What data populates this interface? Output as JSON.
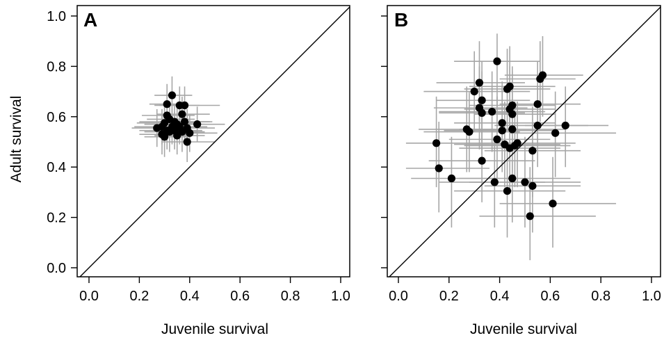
{
  "chart_data": [
    {
      "type": "scatter",
      "panel_label": "A",
      "xlabel": "Juvenile survival",
      "ylabel": "Adult survival",
      "xlim": [
        0,
        1
      ],
      "ylim": [
        0,
        1
      ],
      "x_ticks": [
        "0.0",
        "0.2",
        "0.4",
        "0.6",
        "0.8",
        "1.0"
      ],
      "y_ticks": [
        "0.0",
        "0.2",
        "0.4",
        "0.6",
        "0.8",
        "1.0"
      ],
      "reference_line": "y = x",
      "grid": false,
      "point_color": "#000000",
      "error_bar_color": "#a6a6a6",
      "points": [
        {
          "x": 0.33,
          "y": 0.685,
          "x_lo": 0.26,
          "x_hi": 0.41,
          "y_lo": 0.6,
          "y_hi": 0.76
        },
        {
          "x": 0.31,
          "y": 0.65,
          "x_lo": 0.24,
          "x_hi": 0.38,
          "y_lo": 0.57,
          "y_hi": 0.73
        },
        {
          "x": 0.36,
          "y": 0.645,
          "x_lo": 0.28,
          "x_hi": 0.44,
          "y_lo": 0.57,
          "y_hi": 0.72
        },
        {
          "x": 0.38,
          "y": 0.645,
          "x_lo": 0.26,
          "x_hi": 0.52,
          "y_lo": 0.57,
          "y_hi": 0.72
        },
        {
          "x": 0.37,
          "y": 0.61,
          "x_lo": 0.27,
          "x_hi": 0.48,
          "y_lo": 0.54,
          "y_hi": 0.68
        },
        {
          "x": 0.31,
          "y": 0.605,
          "x_lo": 0.21,
          "x_hi": 0.42,
          "y_lo": 0.53,
          "y_hi": 0.68
        },
        {
          "x": 0.32,
          "y": 0.59,
          "x_lo": 0.23,
          "x_hi": 0.42,
          "y_lo": 0.52,
          "y_hi": 0.66
        },
        {
          "x": 0.34,
          "y": 0.58,
          "x_lo": 0.2,
          "x_hi": 0.48,
          "y_lo": 0.51,
          "y_hi": 0.65
        },
        {
          "x": 0.38,
          "y": 0.58,
          "x_lo": 0.28,
          "x_hi": 0.49,
          "y_lo": 0.51,
          "y_hi": 0.65
        },
        {
          "x": 0.3,
          "y": 0.575,
          "x_lo": 0.19,
          "x_hi": 0.42,
          "y_lo": 0.5,
          "y_hi": 0.65
        },
        {
          "x": 0.35,
          "y": 0.57,
          "x_lo": 0.22,
          "x_hi": 0.46,
          "y_lo": 0.5,
          "y_hi": 0.64
        },
        {
          "x": 0.43,
          "y": 0.57,
          "x_lo": 0.3,
          "x_hi": 0.54,
          "y_lo": 0.5,
          "y_hi": 0.64
        },
        {
          "x": 0.29,
          "y": 0.56,
          "x_lo": 0.18,
          "x_hi": 0.4,
          "y_lo": 0.49,
          "y_hi": 0.63
        },
        {
          "x": 0.33,
          "y": 0.56,
          "x_lo": 0.2,
          "x_hi": 0.45,
          "y_lo": 0.49,
          "y_hi": 0.63
        },
        {
          "x": 0.36,
          "y": 0.56,
          "x_lo": 0.23,
          "x_hi": 0.47,
          "y_lo": 0.49,
          "y_hi": 0.63
        },
        {
          "x": 0.27,
          "y": 0.555,
          "x_lo": 0.17,
          "x_hi": 0.36,
          "y_lo": 0.48,
          "y_hi": 0.63
        },
        {
          "x": 0.39,
          "y": 0.555,
          "x_lo": 0.3,
          "x_hi": 0.5,
          "y_lo": 0.48,
          "y_hi": 0.63
        },
        {
          "x": 0.31,
          "y": 0.545,
          "x_lo": 0.2,
          "x_hi": 0.41,
          "y_lo": 0.47,
          "y_hi": 0.62
        },
        {
          "x": 0.34,
          "y": 0.545,
          "x_lo": 0.24,
          "x_hi": 0.45,
          "y_lo": 0.47,
          "y_hi": 0.62
        },
        {
          "x": 0.32,
          "y": 0.54,
          "x_lo": 0.22,
          "x_hi": 0.43,
          "y_lo": 0.46,
          "y_hi": 0.61
        },
        {
          "x": 0.37,
          "y": 0.54,
          "x_lo": 0.27,
          "x_hi": 0.46,
          "y_lo": 0.46,
          "y_hi": 0.61
        },
        {
          "x": 0.4,
          "y": 0.535,
          "x_lo": 0.3,
          "x_hi": 0.51,
          "y_lo": 0.46,
          "y_hi": 0.61
        },
        {
          "x": 0.29,
          "y": 0.53,
          "x_lo": 0.2,
          "x_hi": 0.39,
          "y_lo": 0.45,
          "y_hi": 0.61
        },
        {
          "x": 0.35,
          "y": 0.525,
          "x_lo": 0.26,
          "x_hi": 0.46,
          "y_lo": 0.45,
          "y_hi": 0.6
        },
        {
          "x": 0.3,
          "y": 0.52,
          "x_lo": 0.22,
          "x_hi": 0.4,
          "y_lo": 0.44,
          "y_hi": 0.6
        },
        {
          "x": 0.39,
          "y": 0.5,
          "x_lo": 0.29,
          "x_hi": 0.5,
          "y_lo": 0.42,
          "y_hi": 0.58
        }
      ]
    },
    {
      "type": "scatter",
      "panel_label": "B",
      "xlabel": "Juvenile survival",
      "ylabel": "",
      "xlim": [
        0,
        1
      ],
      "ylim": [
        0,
        1
      ],
      "x_ticks": [
        "0.0",
        "0.2",
        "0.4",
        "0.6",
        "0.8",
        "1.0"
      ],
      "y_ticks": [
        "",
        "",
        "",
        "",
        "",
        ""
      ],
      "reference_line": "y = x",
      "grid": false,
      "point_color": "#000000",
      "error_bar_color": "#a6a6a6",
      "points": [
        {
          "x": 0.39,
          "y": 0.82,
          "x_lo": 0.22,
          "x_hi": 0.56,
          "y_lo": 0.64,
          "y_hi": 0.93
        },
        {
          "x": 0.57,
          "y": 0.765,
          "x_lo": 0.42,
          "x_hi": 0.73,
          "y_lo": 0.6,
          "y_hi": 0.92
        },
        {
          "x": 0.56,
          "y": 0.75,
          "x_lo": 0.4,
          "x_hi": 0.7,
          "y_lo": 0.58,
          "y_hi": 0.9
        },
        {
          "x": 0.32,
          "y": 0.735,
          "x_lo": 0.15,
          "x_hi": 0.5,
          "y_lo": 0.58,
          "y_hi": 0.9
        },
        {
          "x": 0.44,
          "y": 0.72,
          "x_lo": 0.28,
          "x_hi": 0.62,
          "y_lo": 0.56,
          "y_hi": 0.88
        },
        {
          "x": 0.43,
          "y": 0.71,
          "x_lo": 0.26,
          "x_hi": 0.6,
          "y_lo": 0.55,
          "y_hi": 0.87
        },
        {
          "x": 0.3,
          "y": 0.7,
          "x_lo": 0.1,
          "x_hi": 0.52,
          "y_lo": 0.54,
          "y_hi": 0.86
        },
        {
          "x": 0.33,
          "y": 0.665,
          "x_lo": 0.15,
          "x_hi": 0.52,
          "y_lo": 0.5,
          "y_hi": 0.82
        },
        {
          "x": 0.55,
          "y": 0.65,
          "x_lo": 0.4,
          "x_hi": 0.72,
          "y_lo": 0.48,
          "y_hi": 0.82
        },
        {
          "x": 0.45,
          "y": 0.645,
          "x_lo": 0.28,
          "x_hi": 0.62,
          "y_lo": 0.48,
          "y_hi": 0.8
        },
        {
          "x": 0.32,
          "y": 0.635,
          "x_lo": 0.14,
          "x_hi": 0.51,
          "y_lo": 0.47,
          "y_hi": 0.8
        },
        {
          "x": 0.44,
          "y": 0.63,
          "x_lo": 0.26,
          "x_hi": 0.62,
          "y_lo": 0.46,
          "y_hi": 0.8
        },
        {
          "x": 0.37,
          "y": 0.62,
          "x_lo": 0.16,
          "x_hi": 0.58,
          "y_lo": 0.46,
          "y_hi": 0.78
        },
        {
          "x": 0.33,
          "y": 0.615,
          "x_lo": 0.16,
          "x_hi": 0.5,
          "y_lo": 0.45,
          "y_hi": 0.78
        },
        {
          "x": 0.45,
          "y": 0.61,
          "x_lo": 0.3,
          "x_hi": 0.62,
          "y_lo": 0.45,
          "y_hi": 0.78
        },
        {
          "x": 0.41,
          "y": 0.575,
          "x_lo": 0.22,
          "x_hi": 0.62,
          "y_lo": 0.4,
          "y_hi": 0.74
        },
        {
          "x": 0.66,
          "y": 0.565,
          "x_lo": 0.5,
          "x_hi": 0.83,
          "y_lo": 0.4,
          "y_hi": 0.72
        },
        {
          "x": 0.55,
          "y": 0.565,
          "x_lo": 0.38,
          "x_hi": 0.75,
          "y_lo": 0.4,
          "y_hi": 0.72
        },
        {
          "x": 0.45,
          "y": 0.55,
          "x_lo": 0.24,
          "x_hi": 0.66,
          "y_lo": 0.38,
          "y_hi": 0.7
        },
        {
          "x": 0.27,
          "y": 0.55,
          "x_lo": 0.08,
          "x_hi": 0.46,
          "y_lo": 0.38,
          "y_hi": 0.72
        },
        {
          "x": 0.41,
          "y": 0.545,
          "x_lo": 0.18,
          "x_hi": 0.62,
          "y_lo": 0.38,
          "y_hi": 0.72
        },
        {
          "x": 0.28,
          "y": 0.54,
          "x_lo": 0.1,
          "x_hi": 0.48,
          "y_lo": 0.38,
          "y_hi": 0.7
        },
        {
          "x": 0.62,
          "y": 0.535,
          "x_lo": 0.44,
          "x_hi": 0.86,
          "y_lo": 0.36,
          "y_hi": 0.7
        },
        {
          "x": 0.39,
          "y": 0.51,
          "x_lo": 0.2,
          "x_hi": 0.6,
          "y_lo": 0.34,
          "y_hi": 0.68
        },
        {
          "x": 0.47,
          "y": 0.495,
          "x_lo": 0.26,
          "x_hi": 0.7,
          "y_lo": 0.32,
          "y_hi": 0.66
        },
        {
          "x": 0.42,
          "y": 0.49,
          "x_lo": 0.22,
          "x_hi": 0.64,
          "y_lo": 0.32,
          "y_hi": 0.66
        },
        {
          "x": 0.15,
          "y": 0.495,
          "x_lo": 0.03,
          "x_hi": 0.36,
          "y_lo": 0.32,
          "y_hi": 0.68
        },
        {
          "x": 0.46,
          "y": 0.485,
          "x_lo": 0.26,
          "x_hi": 0.68,
          "y_lo": 0.32,
          "y_hi": 0.66
        },
        {
          "x": 0.44,
          "y": 0.475,
          "x_lo": 0.24,
          "x_hi": 0.64,
          "y_lo": 0.3,
          "y_hi": 0.64
        },
        {
          "x": 0.53,
          "y": 0.465,
          "x_lo": 0.34,
          "x_hi": 0.72,
          "y_lo": 0.28,
          "y_hi": 0.64
        },
        {
          "x": 0.33,
          "y": 0.425,
          "x_lo": 0.12,
          "x_hi": 0.54,
          "y_lo": 0.26,
          "y_hi": 0.6
        },
        {
          "x": 0.16,
          "y": 0.395,
          "x_lo": 0.03,
          "x_hi": 0.36,
          "y_lo": 0.22,
          "y_hi": 0.58
        },
        {
          "x": 0.45,
          "y": 0.355,
          "x_lo": 0.24,
          "x_hi": 0.68,
          "y_lo": 0.18,
          "y_hi": 0.52
        },
        {
          "x": 0.21,
          "y": 0.355,
          "x_lo": 0.05,
          "x_hi": 0.4,
          "y_lo": 0.16,
          "y_hi": 0.52
        },
        {
          "x": 0.38,
          "y": 0.34,
          "x_lo": 0.16,
          "x_hi": 0.58,
          "y_lo": 0.16,
          "y_hi": 0.52
        },
        {
          "x": 0.5,
          "y": 0.34,
          "x_lo": 0.28,
          "x_hi": 0.72,
          "y_lo": 0.16,
          "y_hi": 0.52
        },
        {
          "x": 0.53,
          "y": 0.325,
          "x_lo": 0.34,
          "x_hi": 0.72,
          "y_lo": 0.14,
          "y_hi": 0.5
        },
        {
          "x": 0.43,
          "y": 0.305,
          "x_lo": 0.22,
          "x_hi": 0.66,
          "y_lo": 0.12,
          "y_hi": 0.48
        },
        {
          "x": 0.61,
          "y": 0.255,
          "x_lo": 0.4,
          "x_hi": 0.86,
          "y_lo": 0.08,
          "y_hi": 0.44
        },
        {
          "x": 0.52,
          "y": 0.205,
          "x_lo": 0.32,
          "x_hi": 0.78,
          "y_lo": 0.03,
          "y_hi": 0.4
        }
      ]
    }
  ]
}
